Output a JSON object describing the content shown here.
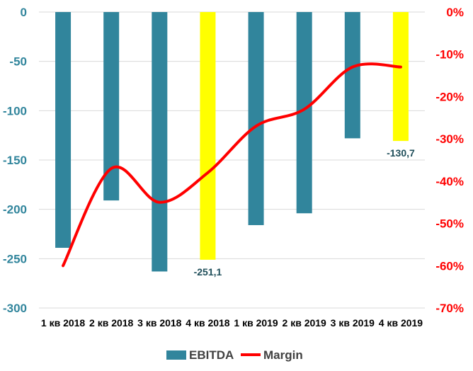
{
  "chart_data": {
    "type": "bar",
    "categories": [
      "1 кв 2018",
      "2 кв 2018",
      "3 кв 2018",
      "4 кв 2018",
      "1 кв 2019",
      "2 кв 2019",
      "3 кв 2019",
      "4 кв 2019"
    ],
    "series": [
      {
        "name": "EBITDA",
        "type": "bar",
        "axis": "left",
        "values": [
          -239,
          -191,
          -263,
          -251.1,
          -216,
          -204,
          -128,
          -130.7
        ],
        "highlight": [
          false,
          false,
          false,
          true,
          false,
          false,
          false,
          true
        ],
        "data_labels": [
          "",
          "",
          "",
          "-251,1",
          "",
          "",
          "",
          "-130,7"
        ]
      },
      {
        "name": "Margin",
        "type": "line",
        "axis": "right",
        "values": [
          -60,
          -37,
          -45,
          -38,
          -27,
          -23,
          -13,
          -13
        ]
      }
    ],
    "y_left": {
      "range": [
        -300,
        0
      ],
      "ticks": [
        0,
        -50,
        -100,
        -150,
        -200,
        -250,
        -300
      ],
      "tick_labels": [
        "0",
        "-50",
        "-100",
        "-150",
        "-200",
        "-250",
        "-300"
      ]
    },
    "y_right": {
      "range": [
        -70,
        0
      ],
      "ticks": [
        0,
        -10,
        -20,
        -30,
        -40,
        -50,
        -60,
        -70
      ],
      "tick_labels": [
        "0%",
        "-10%",
        "-20%",
        "-30%",
        "-40%",
        "-50%",
        "-60%",
        "-70%"
      ]
    },
    "grid": true,
    "legend_position": "bottom",
    "colors": {
      "bar": "#31859c",
      "bar_highlight": "#ffff00",
      "line": "#ff0000",
      "left_axis": "#31859c",
      "right_axis": "#ff0000",
      "category_text": "#000000",
      "label_text": "#1f4e5a",
      "grid": "#d9d9d9"
    },
    "title": "",
    "xlabel": "",
    "ylabel": ""
  }
}
